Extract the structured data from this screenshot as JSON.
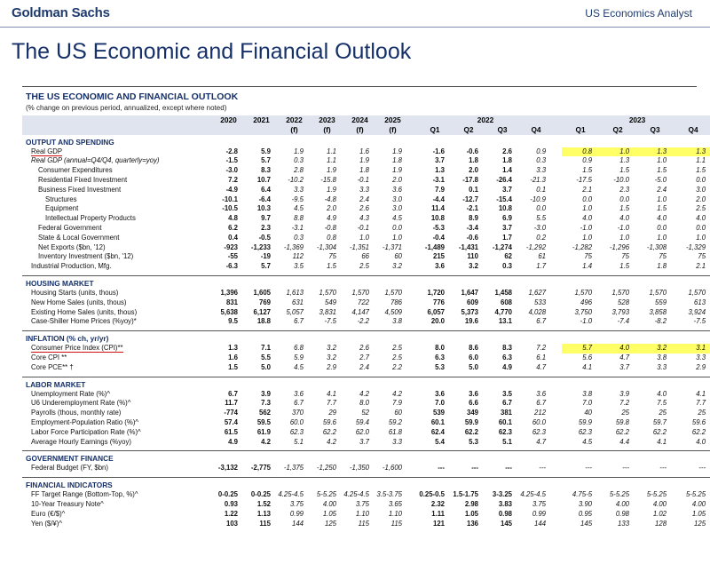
{
  "header": {
    "brand": "Goldman Sachs",
    "publication": "US Economics Analyst"
  },
  "page_title": "The US Economic and Financial Outlook",
  "table": {
    "title": "THE US ECONOMIC AND FINANCIAL OUTLOOK",
    "subtitle": "(% change on previous period, annualized, except where noted)",
    "annual_headers": [
      {
        "year": "2020",
        "tag": ""
      },
      {
        "year": "2021",
        "tag": ""
      },
      {
        "year": "2022",
        "tag": "(f)"
      },
      {
        "year": "2023",
        "tag": "(f)"
      },
      {
        "year": "2024",
        "tag": "(f)"
      },
      {
        "year": "2025",
        "tag": "(f)"
      }
    ],
    "year_2022": "2022",
    "year_2023": "2023",
    "quarters": [
      "Q1",
      "Q2",
      "Q3",
      "Q4",
      "Q1",
      "Q2",
      "Q3",
      "Q4"
    ],
    "sections": [
      {
        "name": "OUTPUT AND SPENDING",
        "rows": [
          {
            "label": "Real GDP",
            "indent": 1,
            "mark": "red",
            "v": [
              "-2.8",
              "5.9",
              "1.9",
              "1.1",
              "1.6",
              "1.9",
              "-1.6",
              "-0.6",
              "2.6",
              "0.9",
              "0.8",
              "1.0",
              "1.3",
              "1.3"
            ],
            "hl": true
          },
          {
            "label": "Real GDP (annual=Q4/Q4, quarterly=yoy)",
            "indent": 1,
            "italic": true,
            "v": [
              "-1.5",
              "5.7",
              "0.3",
              "1.1",
              "1.9",
              "1.8",
              "3.7",
              "1.8",
              "1.8",
              "0.3",
              "0.9",
              "1.3",
              "1.0",
              "1.1"
            ]
          },
          {
            "label": "Consumer Expenditures",
            "indent": 2,
            "v": [
              "-3.0",
              "8.3",
              "2.8",
              "1.9",
              "1.8",
              "1.9",
              "1.3",
              "2.0",
              "1.4",
              "3.3",
              "1.5",
              "1.5",
              "1.5",
              "1.5"
            ]
          },
          {
            "label": "Residential Fixed Investment",
            "indent": 2,
            "v": [
              "7.2",
              "10.7",
              "-10.2",
              "-15.8",
              "-0.1",
              "2.0",
              "-3.1",
              "-17.8",
              "-26.4",
              "-21.3",
              "-17.5",
              "-10.0",
              "-5.0",
              "0.0"
            ]
          },
          {
            "label": "Business Fixed Investment",
            "indent": 2,
            "v": [
              "-4.9",
              "6.4",
              "3.3",
              "1.9",
              "3.3",
              "3.6",
              "7.9",
              "0.1",
              "3.7",
              "0.1",
              "2.1",
              "2.3",
              "2.4",
              "3.0"
            ]
          },
          {
            "label": "Structures",
            "indent": 3,
            "v": [
              "-10.1",
              "-6.4",
              "-9.5",
              "-4.8",
              "2.4",
              "3.0",
              "-4.4",
              "-12.7",
              "-15.4",
              "-10.9",
              "0.0",
              "0.0",
              "1.0",
              "2.0"
            ]
          },
          {
            "label": "Equipment",
            "indent": 3,
            "v": [
              "-10.5",
              "10.3",
              "4.5",
              "2.0",
              "2.6",
              "3.0",
              "11.4",
              "-2.1",
              "10.8",
              "0.0",
              "1.0",
              "1.5",
              "1.5",
              "2.5"
            ]
          },
          {
            "label": "Intellectual Property Products",
            "indent": 3,
            "v": [
              "4.8",
              "9.7",
              "8.8",
              "4.9",
              "4.3",
              "4.5",
              "10.8",
              "8.9",
              "6.9",
              "5.5",
              "4.0",
              "4.0",
              "4.0",
              "4.0"
            ]
          },
          {
            "label": "Federal Government",
            "indent": 2,
            "v": [
              "6.2",
              "2.3",
              "-3.1",
              "-0.8",
              "-0.1",
              "0.0",
              "-5.3",
              "-3.4",
              "3.7",
              "-3.0",
              "-1.0",
              "-1.0",
              "0.0",
              "0.0"
            ]
          },
          {
            "label": "State & Local Government",
            "indent": 2,
            "v": [
              "0.4",
              "-0.5",
              "0.3",
              "0.8",
              "1.0",
              "1.0",
              "-0.4",
              "-0.6",
              "1.7",
              "0.2",
              "1.0",
              "1.0",
              "1.0",
              "1.0"
            ]
          },
          {
            "label": "Net Exports ($bn, '12)",
            "indent": 2,
            "v": [
              "-923",
              "-1,233",
              "-1,369",
              "-1,304",
              "-1,351",
              "-1,371",
              "-1,489",
              "-1,431",
              "-1,274",
              "-1,292",
              "-1,282",
              "-1,296",
              "-1,308",
              "-1,329"
            ]
          },
          {
            "label": "Inventory Investment ($bn, '12)",
            "indent": 2,
            "v": [
              "-55",
              "-19",
              "112",
              "75",
              "66",
              "60",
              "215",
              "110",
              "62",
              "61",
              "75",
              "75",
              "75",
              "75"
            ]
          },
          {
            "label": "Industrial Production, Mfg.",
            "indent": 1,
            "v": [
              "-6.3",
              "5.7",
              "3.5",
              "1.5",
              "2.5",
              "3.2",
              "3.6",
              "3.2",
              "0.3",
              "1.7",
              "1.4",
              "1.5",
              "1.8",
              "2.1"
            ]
          }
        ]
      },
      {
        "name": "HOUSING MARKET",
        "rows": [
          {
            "label": "Housing Starts (units, thous)",
            "indent": 1,
            "v": [
              "1,396",
              "1,605",
              "1,613",
              "1,570",
              "1,570",
              "1,570",
              "1,720",
              "1,647",
              "1,458",
              "1,627",
              "1,570",
              "1,570",
              "1,570",
              "1,570"
            ]
          },
          {
            "label": "New Home Sales (units, thous)",
            "indent": 1,
            "v": [
              "831",
              "769",
              "631",
              "549",
              "722",
              "786",
              "776",
              "609",
              "608",
              "533",
              "496",
              "528",
              "559",
              "613"
            ]
          },
          {
            "label": "Existing Home Sales (units, thous)",
            "indent": 1,
            "v": [
              "5,638",
              "6,127",
              "5,057",
              "3,831",
              "4,147",
              "4,509",
              "6,057",
              "5,373",
              "4,770",
              "4,028",
              "3,750",
              "3,793",
              "3,858",
              "3,924"
            ]
          },
          {
            "label": "Case-Shiller Home Prices (%yoy)*",
            "indent": 1,
            "v": [
              "9.5",
              "18.8",
              "6.7",
              "-7.5",
              "-2.2",
              "3.8",
              "20.0",
              "19.6",
              "13.1",
              "6.7",
              "-1.0",
              "-7.4",
              "-8.2",
              "-7.5"
            ]
          }
        ]
      },
      {
        "name": "INFLATION (% ch, yr/yr)",
        "rows": [
          {
            "label": "Consumer Price Index (CPI)**",
            "indent": 1,
            "mark": "red",
            "v": [
              "1.3",
              "7.1",
              "6.8",
              "3.2",
              "2.6",
              "2.5",
              "8.0",
              "8.6",
              "8.3",
              "7.2",
              "5.7",
              "4.0",
              "3.2",
              "3.1"
            ],
            "hl": true
          },
          {
            "label": "Core CPI **",
            "indent": 1,
            "v": [
              "1.6",
              "5.5",
              "5.9",
              "3.2",
              "2.7",
              "2.5",
              "6.3",
              "6.0",
              "6.3",
              "6.1",
              "5.6",
              "4.7",
              "3.8",
              "3.3"
            ]
          },
          {
            "label": "Core PCE** †",
            "indent": 1,
            "v": [
              "1.5",
              "5.0",
              "4.5",
              "2.9",
              "2.4",
              "2.2",
              "5.3",
              "5.0",
              "4.9",
              "4.7",
              "4.1",
              "3.7",
              "3.3",
              "2.9"
            ]
          }
        ]
      },
      {
        "name": "LABOR MARKET",
        "rows": [
          {
            "label": "Unemployment Rate (%)^",
            "indent": 1,
            "v": [
              "6.7",
              "3.9",
              "3.6",
              "4.1",
              "4.2",
              "4.2",
              "3.6",
              "3.6",
              "3.5",
              "3.6",
              "3.8",
              "3.9",
              "4.0",
              "4.1"
            ]
          },
          {
            "label": "U6 Underemployment Rate (%)^",
            "indent": 1,
            "v": [
              "11.7",
              "7.3",
              "6.7",
              "7.7",
              "8.0",
              "7.9",
              "7.0",
              "6.6",
              "6.7",
              "6.7",
              "7.0",
              "7.2",
              "7.5",
              "7.7"
            ]
          },
          {
            "label": "Payrolls (thous, monthly rate)",
            "indent": 1,
            "v": [
              "-774",
              "562",
              "370",
              "29",
              "52",
              "60",
              "539",
              "349",
              "381",
              "212",
              "40",
              "25",
              "25",
              "25"
            ]
          },
          {
            "label": "Employment-Population Ratio (%)^",
            "indent": 1,
            "v": [
              "57.4",
              "59.5",
              "60.0",
              "59.6",
              "59.4",
              "59.2",
              "60.1",
              "59.9",
              "60.1",
              "60.0",
              "59.9",
              "59.8",
              "59.7",
              "59.6"
            ]
          },
          {
            "label": "Labor Force Participation Rate (%)^",
            "indent": 1,
            "v": [
              "61.5",
              "61.9",
              "62.3",
              "62.2",
              "62.0",
              "61.8",
              "62.4",
              "62.2",
              "62.3",
              "62.3",
              "62.3",
              "62.2",
              "62.2",
              "62.2"
            ]
          },
          {
            "label": "Average Hourly Earnings (%yoy)",
            "indent": 1,
            "v": [
              "4.9",
              "4.2",
              "5.1",
              "4.2",
              "3.7",
              "3.3",
              "5.4",
              "5.3",
              "5.1",
              "4.7",
              "4.5",
              "4.4",
              "4.1",
              "4.0"
            ]
          }
        ]
      },
      {
        "name": "GOVERNMENT FINANCE",
        "rows": [
          {
            "label": "Federal Budget (FY, $bn)",
            "indent": 1,
            "v": [
              "-3,132",
              "-2,775",
              "-1,375",
              "-1,250",
              "-1,350",
              "-1,600",
              "---",
              "---",
              "---",
              "---",
              "---",
              "---",
              "---",
              "---"
            ]
          }
        ]
      },
      {
        "name": "FINANCIAL INDICATORS",
        "rows": [
          {
            "label": "FF Target Range (Bottom-Top, %)^",
            "indent": 1,
            "v": [
              "0-0.25",
              "0-0.25",
              "4.25-4.5",
              "5-5.25",
              "4.25-4.5",
              "3.5-3.75",
              "0.25-0.5",
              "1.5-1.75",
              "3-3.25",
              "4.25-4.5",
              "4.75-5",
              "5-5.25",
              "5-5.25",
              "5-5.25"
            ]
          },
          {
            "label": "10-Year Treasury Note^",
            "indent": 1,
            "v": [
              "0.93",
              "1.52",
              "3.75",
              "4.00",
              "3.75",
              "3.65",
              "2.32",
              "2.98",
              "3.83",
              "3.75",
              "3.90",
              "4.00",
              "4.00",
              "4.00"
            ]
          },
          {
            "label": "Euro (€/$)^",
            "indent": 1,
            "v": [
              "1.22",
              "1.13",
              "0.99",
              "1.05",
              "1.10",
              "1.10",
              "1.11",
              "1.05",
              "0.98",
              "0.99",
              "0.95",
              "0.98",
              "1.02",
              "1.05"
            ]
          },
          {
            "label": "Yen ($/¥)^",
            "indent": 1,
            "v": [
              "103",
              "115",
              "144",
              "125",
              "115",
              "115",
              "121",
              "136",
              "145",
              "144",
              "145",
              "133",
              "128",
              "125"
            ]
          }
        ]
      }
    ]
  }
}
